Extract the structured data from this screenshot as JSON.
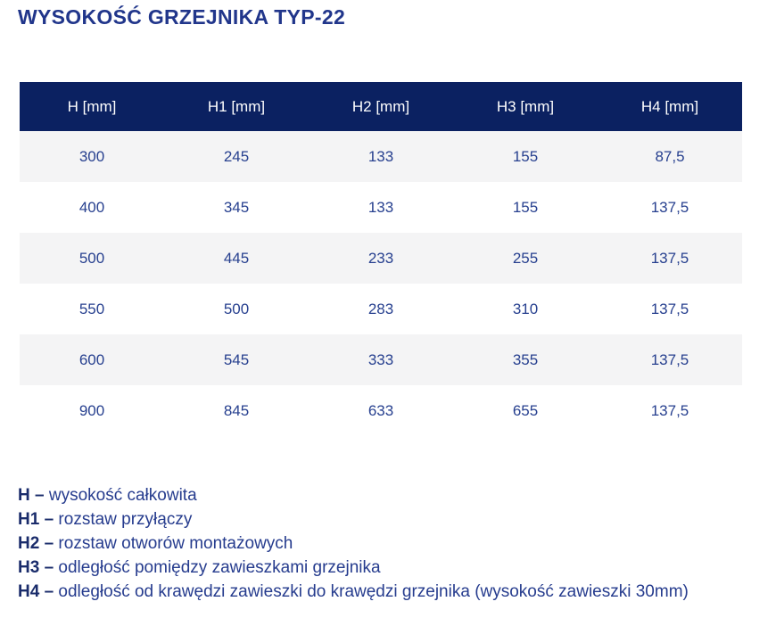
{
  "page": {
    "title": "WYSOKOŚĆ GRZEJNIKA TYP-22"
  },
  "colors": {
    "title_text": "#21368b",
    "header_bg": "#0b2161",
    "header_text": "#ffffff",
    "cell_text": "#27408f",
    "row_alt_bg": "#f4f4f5",
    "legend_term_text": "#1a2c6b",
    "legend_def_text": "#263c8e"
  },
  "chart_data": {
    "type": "table",
    "title": "WYSOKOŚĆ GRZEJNIKA TYP-22",
    "columns": [
      "H [mm]",
      "H1 [mm]",
      "H2 [mm]",
      "H3 [mm]",
      "H4 [mm]"
    ],
    "rows": [
      [
        "300",
        "245",
        "133",
        "155",
        "87,5"
      ],
      [
        "400",
        "345",
        "133",
        "155",
        "137,5"
      ],
      [
        "500",
        "445",
        "233",
        "255",
        "137,5"
      ],
      [
        "550",
        "500",
        "283",
        "310",
        "137,5"
      ],
      [
        "600",
        "545",
        "333",
        "355",
        "137,5"
      ],
      [
        "900",
        "845",
        "633",
        "655",
        "137,5"
      ]
    ]
  },
  "legend": [
    {
      "term": "H –",
      "definition": "wysokość całkowita"
    },
    {
      "term": "H1 –",
      "definition": "rozstaw przyłączy"
    },
    {
      "term": "H2 –",
      "definition": "rozstaw otworów montażowych"
    },
    {
      "term": "H3 –",
      "definition": "odległość pomiędzy zawieszkami grzejnika"
    },
    {
      "term": "H4 –",
      "definition": "odległość od krawędzi zawieszki do krawędzi grzejnika (wysokość zawieszki 30mm)"
    }
  ]
}
